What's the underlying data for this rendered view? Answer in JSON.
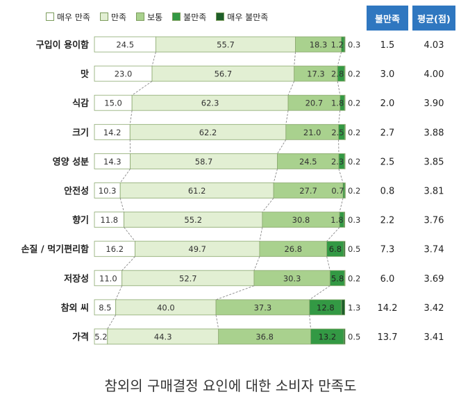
{
  "chart_data": {
    "type": "bar",
    "orientation": "horizontal",
    "stacked": true,
    "title": "참외의 구매결정 요인에 대한 소비자 만족도",
    "xlim": [
      0,
      100
    ],
    "categories": [
      "구입이 용이함",
      "맛",
      "식감",
      "크기",
      "영양 성분",
      "안전성",
      "향기",
      "손질 / 먹기편리함",
      "저장성",
      "참외 씨",
      "가격"
    ],
    "series": [
      {
        "name": "매우 만족",
        "color": "#ffffff",
        "values": [
          24.5,
          23.0,
          15.0,
          14.2,
          14.3,
          10.3,
          11.8,
          16.2,
          11.0,
          8.5,
          5.2
        ]
      },
      {
        "name": "만족",
        "color": "#e2efd3",
        "values": [
          55.7,
          56.7,
          62.3,
          62.2,
          58.7,
          61.2,
          55.2,
          49.7,
          52.7,
          40.0,
          44.3
        ]
      },
      {
        "name": "보통",
        "color": "#a9d18e",
        "values": [
          18.3,
          17.3,
          20.7,
          21.0,
          24.5,
          27.7,
          30.8,
          26.8,
          30.3,
          37.3,
          36.8
        ]
      },
      {
        "name": "불만족",
        "color": "#339944",
        "values": [
          1.2,
          2.8,
          1.8,
          2.5,
          2.3,
          0.7,
          1.8,
          6.8,
          5.8,
          12.8,
          13.2
        ]
      },
      {
        "name": "매우 불만족",
        "color": "#1d5e2a",
        "values": [
          0.3,
          0.2,
          0.2,
          0.2,
          0.2,
          0.2,
          0.3,
          0.5,
          0.2,
          1.3,
          0.5
        ]
      }
    ],
    "side_columns": [
      {
        "header": "불만족",
        "values": [
          "1.5",
          "3.0",
          "2.0",
          "2.7",
          "2.5",
          "0.8",
          "2.2",
          "7.3",
          "6.0",
          "14.2",
          "13.7"
        ]
      },
      {
        "header": "평균(점)",
        "values": [
          "4.03",
          "4.00",
          "3.90",
          "3.88",
          "3.85",
          "3.81",
          "3.76",
          "3.74",
          "3.69",
          "3.42",
          "3.41"
        ]
      }
    ],
    "value_label_strings": [
      [
        "24.5",
        "55.7",
        "18.3",
        "1.2",
        "0.3"
      ],
      [
        "23.0",
        "56.7",
        "17.3",
        "2.8",
        "0.2"
      ],
      [
        "15.0",
        "62.3",
        "20.7",
        "1.8",
        "0.2"
      ],
      [
        "14.2",
        "62.2",
        "21.0",
        "2.5",
        "0.2"
      ],
      [
        "14.3",
        "58.7",
        "24.5",
        "2.3",
        "0.2"
      ],
      [
        "10.3",
        "61.2",
        "27.7",
        "0.7",
        "0.2"
      ],
      [
        "11.8",
        "55.2",
        "30.8",
        "1.8",
        "0.3"
      ],
      [
        "16.2",
        "49.7",
        "26.8",
        "6.8",
        "0.5"
      ],
      [
        "11.0",
        "52.7",
        "30.3",
        "5.8",
        "0.2"
      ],
      [
        "8.5",
        "40.0",
        "37.3",
        "12.8",
        "1.3"
      ],
      [
        "5.2",
        "44.3",
        "36.8",
        "13.2",
        "0.5"
      ]
    ],
    "connector_lines": "dashed"
  }
}
